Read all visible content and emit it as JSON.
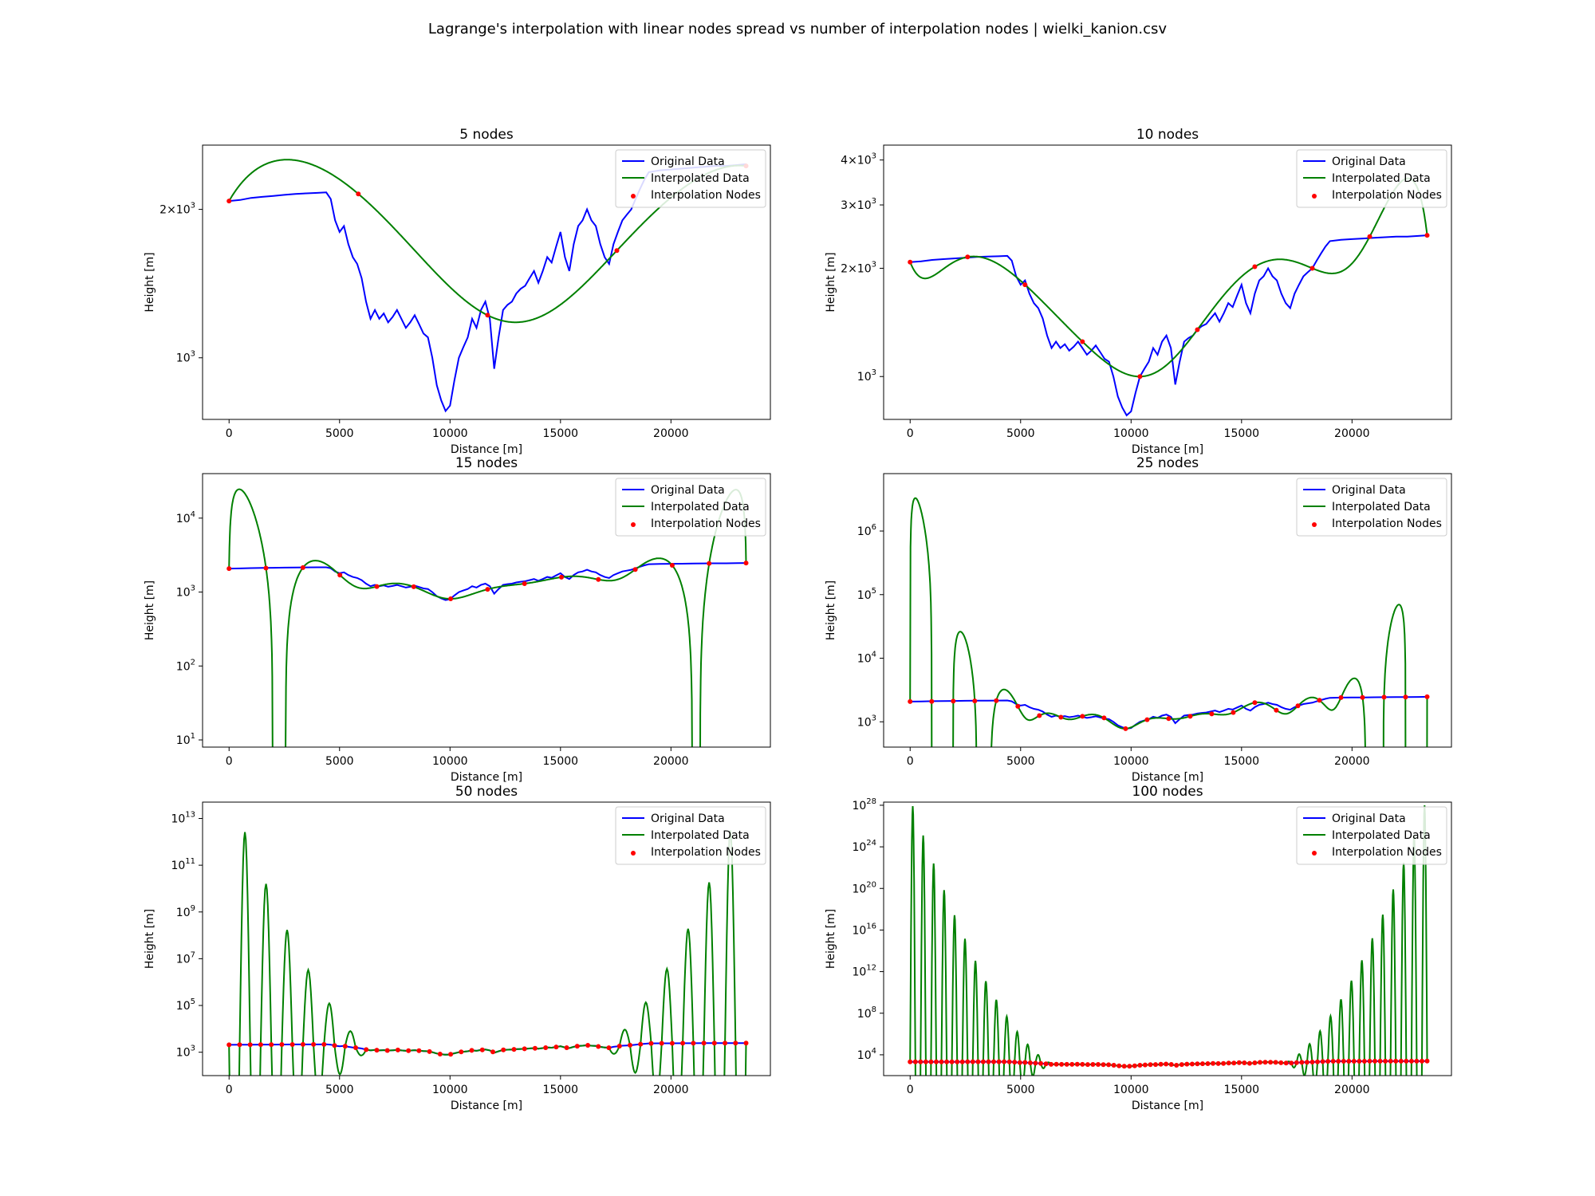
{
  "figure": {
    "title": "Lagrange's interpolation with linear nodes spread vs number of interpolation nodes | wielki_kanion.csv"
  },
  "legend": {
    "original": "Original Data",
    "interpolated": "Interpolated Data",
    "nodes": "Interpolation Nodes",
    "placement": "upper-right"
  },
  "colors": {
    "original": "#0000ff",
    "interpolated": "#008000",
    "nodes": "#ff0000"
  },
  "chart_data": [
    {
      "type": "line",
      "title": "5 nodes",
      "xlabel": "Distance [m]",
      "ylabel": "Height [m]",
      "yscale": "log",
      "xlim": [
        -1200,
        24500
      ],
      "ylim": [
        750,
        2700
      ],
      "x_ticks": [
        0,
        5000,
        10000,
        15000,
        20000
      ],
      "y_ticks": [
        {
          "value": 1000,
          "label": "10^3"
        },
        {
          "value": 2000,
          "label": "2×10^3"
        }
      ],
      "nodes_x": [
        0,
        5850,
        11700,
        17550,
        23400
      ],
      "nodes_y": [
        2080,
        2150,
        1220,
        1650,
        2450
      ]
    },
    {
      "type": "line",
      "title": "10 nodes",
      "xlabel": "Distance [m]",
      "ylabel": "Height [m]",
      "yscale": "log",
      "xlim": [
        -1200,
        24500
      ],
      "ylim": [
        760,
        4400
      ],
      "x_ticks": [
        0,
        5000,
        10000,
        15000,
        20000
      ],
      "y_ticks": [
        {
          "value": 1000,
          "label": "10^3"
        },
        {
          "value": 2000,
          "label": "2×10^3"
        },
        {
          "value": 3000,
          "label": "3×10^3"
        },
        {
          "value": 4000,
          "label": "4×10^3"
        }
      ],
      "nodes_x": [
        0,
        2600,
        5200,
        7800,
        10400,
        13000,
        15600,
        18200,
        20800,
        23400
      ],
      "nodes_y": [
        2080,
        2150,
        1800,
        1250,
        1000,
        1350,
        2020,
        2000,
        2450,
        2470
      ]
    },
    {
      "type": "line",
      "title": "15 nodes",
      "xlabel": "Distance [m]",
      "ylabel": "Height [m]",
      "yscale": "log",
      "xlim": [
        -1200,
        24500
      ],
      "ylim": [
        8,
        40000
      ],
      "x_ticks": [
        0,
        5000,
        10000,
        15000,
        20000
      ],
      "y_ticks": [
        {
          "value": 10,
          "label": "10^1"
        },
        {
          "value": 100,
          "label": "10^2"
        },
        {
          "value": 1000,
          "label": "10^3"
        },
        {
          "value": 10000,
          "label": "10^4"
        }
      ],
      "nodes_x": [
        0,
        1671,
        3343,
        5014,
        6686,
        8357,
        10029,
        11700,
        13371,
        15043,
        16714,
        18386,
        20057,
        21729,
        23400
      ],
      "nodes_y": [
        2080,
        2110,
        2140,
        1700,
        1190,
        1180,
        810,
        1090,
        1300,
        1590,
        1480,
        2020,
        2300,
        2440,
        2470
      ]
    },
    {
      "type": "line",
      "title": "25 nodes",
      "xlabel": "Distance [m]",
      "ylabel": "Height [m]",
      "yscale": "log",
      "xlim": [
        -1200,
        24500
      ],
      "ylim": [
        400,
        8000000
      ],
      "x_ticks": [
        0,
        5000,
        10000,
        15000,
        20000
      ],
      "y_ticks": [
        {
          "value": 1000,
          "label": "10^3"
        },
        {
          "value": 10000,
          "label": "10^4"
        },
        {
          "value": 100000,
          "label": "10^5"
        },
        {
          "value": 1000000,
          "label": "10^6"
        }
      ],
      "nodes_x": [
        0,
        975,
        1950,
        2925,
        3900,
        4875,
        5850,
        6825,
        7800,
        8775,
        9750,
        10725,
        11700,
        12675,
        13650,
        14625,
        15600,
        16575,
        17550,
        18525,
        19500,
        20475,
        21450,
        22425,
        23400
      ],
      "nodes_y": [
        2080,
        2090,
        2110,
        2130,
        2150,
        1750,
        1250,
        1180,
        1220,
        1150,
        780,
        1080,
        1120,
        1220,
        1330,
        1400,
        2000,
        1520,
        1780,
        2180,
        2400,
        2420,
        2440,
        2450,
        2470
      ]
    },
    {
      "type": "line",
      "title": "50 nodes",
      "xlabel": "Distance [m]",
      "ylabel": "Height [m]",
      "yscale": "log",
      "xlim": [
        -1200,
        24500
      ],
      "ylim": [
        100,
        50000000000000.0
      ],
      "x_ticks": [
        0,
        5000,
        10000,
        15000,
        20000
      ],
      "y_ticks": [
        {
          "value": 1000,
          "label": "10^3"
        },
        {
          "value": 100000,
          "label": "10^5"
        },
        {
          "value": 10000000,
          "label": "10^7"
        },
        {
          "value": 1000000000,
          "label": "10^9"
        },
        {
          "value": 100000000000,
          "label": "10^11"
        },
        {
          "value": 10000000000000,
          "label": "10^13"
        }
      ],
      "node_count": 50
    },
    {
      "type": "line",
      "title": "100 nodes",
      "xlabel": "Distance [m]",
      "ylabel": "Height [m]",
      "yscale": "log",
      "xlim": [
        -1200,
        24500
      ],
      "ylim": [
        100,
        2e+28
      ],
      "x_ticks": [
        0,
        5000,
        10000,
        15000,
        20000
      ],
      "y_ticks": [
        {
          "value": 10000,
          "label": "10^4"
        },
        {
          "value": 100000000,
          "label": "10^8"
        },
        {
          "value": 1000000000000,
          "label": "10^12"
        },
        {
          "value": 1e+16,
          "label": "10^16"
        },
        {
          "value": 1e+20,
          "label": "10^20"
        },
        {
          "value": 1e+24,
          "label": "10^24"
        },
        {
          "value": 1e+28,
          "label": "10^28"
        }
      ],
      "node_count": 100
    }
  ],
  "original_profile": {
    "x": [
      0,
      500,
      1000,
      1500,
      2000,
      2500,
      3000,
      3500,
      4000,
      4400,
      4600,
      4800,
      5000,
      5200,
      5400,
      5600,
      5800,
      6000,
      6200,
      6400,
      6600,
      6800,
      7000,
      7200,
      7400,
      7600,
      7800,
      8000,
      8200,
      8400,
      8600,
      8800,
      9000,
      9200,
      9400,
      9600,
      9800,
      10000,
      10200,
      10400,
      10600,
      10800,
      11000,
      11200,
      11400,
      11600,
      11800,
      12000,
      12200,
      12400,
      12600,
      12800,
      13000,
      13200,
      13400,
      13600,
      13800,
      14000,
      14200,
      14400,
      14600,
      14800,
      15000,
      15200,
      15400,
      15600,
      15800,
      16000,
      16200,
      16400,
      16600,
      16800,
      17000,
      17200,
      17400,
      17600,
      17800,
      18000,
      18200,
      18400,
      18600,
      18800,
      19000,
      19500,
      20000,
      20500,
      21000,
      21500,
      22000,
      22500,
      23000,
      23400
    ],
    "y": [
      2080,
      2090,
      2110,
      2120,
      2130,
      2140,
      2150,
      2155,
      2160,
      2165,
      2100,
      1900,
      1800,
      1850,
      1700,
      1600,
      1550,
      1450,
      1300,
      1200,
      1250,
      1200,
      1230,
      1180,
      1210,
      1250,
      1200,
      1150,
      1180,
      1220,
      1170,
      1120,
      1100,
      1000,
      880,
      820,
      780,
      800,
      900,
      1000,
      1050,
      1100,
      1200,
      1150,
      1250,
      1300,
      1200,
      950,
      1100,
      1250,
      1280,
      1300,
      1350,
      1380,
      1400,
      1450,
      1500,
      1420,
      1500,
      1600,
      1560,
      1680,
      1800,
      1600,
      1500,
      1700,
      1850,
      1900,
      2000,
      1900,
      1850,
      1700,
      1600,
      1550,
      1700,
      1800,
      1900,
      1950,
      2000,
      2100,
      2200,
      2300,
      2380,
      2400,
      2410,
      2420,
      2430,
      2440,
      2450,
      2450,
      2460,
      2470
    ]
  }
}
